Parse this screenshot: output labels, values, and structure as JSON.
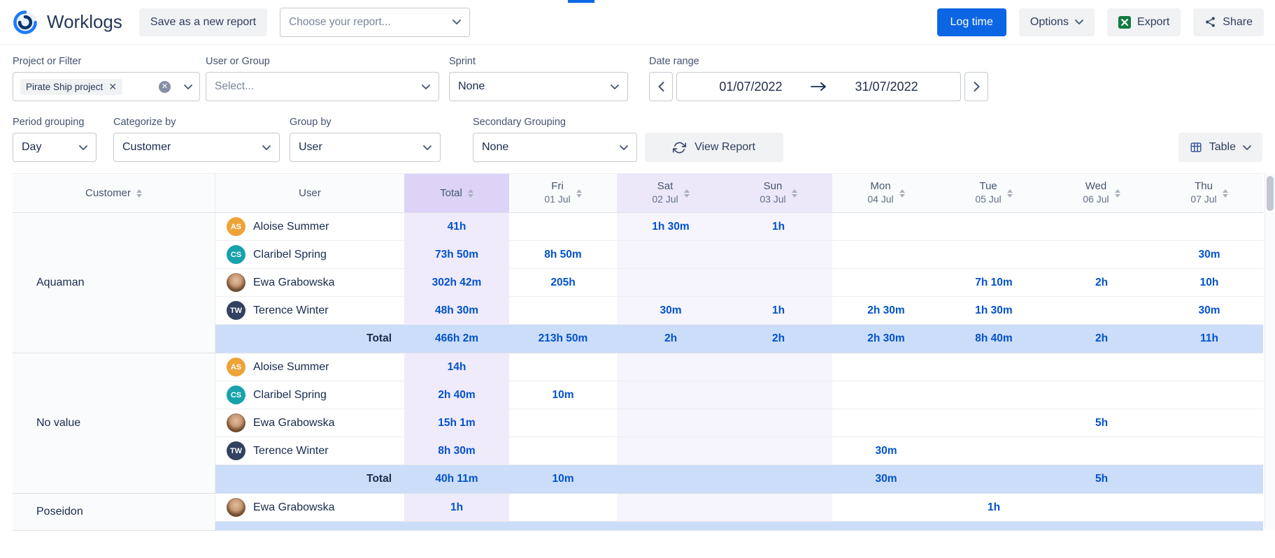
{
  "topbar": {
    "app_title": "Worklogs",
    "save_report_button": "Save as a new report",
    "choose_report_placeholder": "Choose your report...",
    "log_time_button": "Log time",
    "options_button": "Options",
    "export_button": "Export",
    "share_button": "Share"
  },
  "filters": {
    "project_label": "Project or Filter",
    "project_tag": "Pirate Ship project",
    "user_label": "User or Group",
    "user_placeholder": "Select...",
    "sprint_label": "Sprint",
    "sprint_value": "None",
    "date_label": "Date range",
    "date_start": "01/07/2022",
    "date_end": "31/07/2022"
  },
  "grouping": {
    "period_label": "Period grouping",
    "period_value": "Day",
    "categorize_label": "Categorize by",
    "categorize_value": "Customer",
    "groupby_label": "Group by",
    "groupby_value": "User",
    "secondary_label": "Secondary Grouping",
    "secondary_value": "None",
    "view_report_button": "View Report",
    "view_mode_button": "Table"
  },
  "colors": {
    "accent_blue": "#0C66E4",
    "value_blue": "#0052CC",
    "total_row_bg": "#CBDDF8",
    "total_col_header_bg": "#DCD3F7",
    "total_col_bg": "#EFEBFB",
    "weekend_header_bg": "#ECE8FA",
    "weekend_bg": "#F6F4FD",
    "excel_green": "#107C41"
  },
  "table": {
    "customer_header": "Customer",
    "user_header": "User",
    "total_header": "Total",
    "total_row_label": "Total",
    "days": [
      {
        "day": "Fri",
        "date": "01 Jul",
        "weekend": false
      },
      {
        "day": "Sat",
        "date": "02 Jul",
        "weekend": true
      },
      {
        "day": "Sun",
        "date": "03 Jul",
        "weekend": true
      },
      {
        "day": "Mon",
        "date": "04 Jul",
        "weekend": false
      },
      {
        "day": "Tue",
        "date": "05 Jul",
        "weekend": false
      },
      {
        "day": "Wed",
        "date": "06 Jul",
        "weekend": false
      },
      {
        "day": "Thu",
        "date": "07 Jul",
        "weekend": false
      }
    ],
    "groups": [
      {
        "customer": "Aquaman",
        "rows": [
          {
            "user": "Aloise Summer",
            "avatar": {
              "initials": "AS",
              "color": "#EDA338"
            },
            "total": "41h",
            "cells": [
              "",
              "1h 30m",
              "1h",
              "",
              "",
              "",
              ""
            ]
          },
          {
            "user": "Claribel Spring",
            "avatar": {
              "initials": "CS",
              "color": "#17A2AC"
            },
            "total": "73h 50m",
            "cells": [
              "8h 50m",
              "",
              "",
              "",
              "",
              "",
              "30m"
            ]
          },
          {
            "user": "Ewa Grabowska",
            "avatar": {
              "photo": true
            },
            "total": "302h 42m",
            "cells": [
              "205h",
              "",
              "",
              "",
              "7h 10m",
              "2h",
              "10h"
            ]
          },
          {
            "user": "Terence Winter",
            "avatar": {
              "initials": "TW",
              "color": "#32415F"
            },
            "total": "48h 30m",
            "cells": [
              "",
              "30m",
              "1h",
              "2h 30m",
              "1h 30m",
              "",
              "30m"
            ]
          }
        ],
        "total": {
          "total": "466h 2m",
          "cells": [
            "213h 50m",
            "2h",
            "2h",
            "2h 30m",
            "8h 40m",
            "2h",
            "11h"
          ]
        }
      },
      {
        "customer": "No value",
        "rows": [
          {
            "user": "Aloise Summer",
            "avatar": {
              "initials": "AS",
              "color": "#EDA338"
            },
            "total": "14h",
            "cells": [
              "",
              "",
              "",
              "",
              "",
              "",
              ""
            ]
          },
          {
            "user": "Claribel Spring",
            "avatar": {
              "initials": "CS",
              "color": "#17A2AC"
            },
            "total": "2h 40m",
            "cells": [
              "10m",
              "",
              "",
              "",
              "",
              "",
              ""
            ]
          },
          {
            "user": "Ewa Grabowska",
            "avatar": {
              "photo": true
            },
            "total": "15h 1m",
            "cells": [
              "",
              "",
              "",
              "",
              "",
              "5h",
              ""
            ]
          },
          {
            "user": "Terence Winter",
            "avatar": {
              "initials": "TW",
              "color": "#32415F"
            },
            "total": "8h 30m",
            "cells": [
              "",
              "",
              "",
              "30m",
              "",
              "",
              ""
            ]
          }
        ],
        "total": {
          "total": "40h 11m",
          "cells": [
            "10m",
            "",
            "",
            "30m",
            "",
            "5h",
            ""
          ]
        }
      },
      {
        "customer": "Poseidon",
        "rows": [
          {
            "user": "Ewa Grabowska",
            "avatar": {
              "photo": true
            },
            "total": "1h",
            "cells": [
              "",
              "",
              "",
              "",
              "1h",
              "",
              ""
            ]
          }
        ],
        "partial_total": true
      }
    ]
  }
}
